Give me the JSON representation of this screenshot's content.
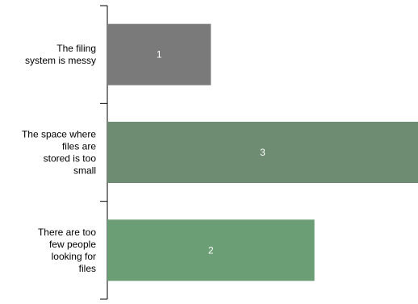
{
  "chart_data": {
    "type": "bar",
    "orientation": "horizontal",
    "categories": [
      "The filing system is messy",
      "The space where files are stored is too small",
      "There are too few people looking for files"
    ],
    "category_label_lines": [
      [
        "The filing",
        "system is messy"
      ],
      [
        "The space where",
        "files are",
        "stored is too",
        "small"
      ],
      [
        "There are too",
        "few people",
        "looking for",
        "files"
      ]
    ],
    "values": [
      1,
      3,
      2
    ],
    "data_labels": [
      "1",
      "3",
      "2"
    ],
    "bar_colors": [
      "#7a7a7a",
      "#6e8c72",
      "#6b9e74"
    ],
    "data_label_color": "#ffffff",
    "axis_color": "#000000",
    "label_color": "#000000",
    "xlim": [
      0,
      3
    ],
    "grid": false,
    "legend": "none",
    "title": "",
    "xlabel": "",
    "ylabel": ""
  }
}
